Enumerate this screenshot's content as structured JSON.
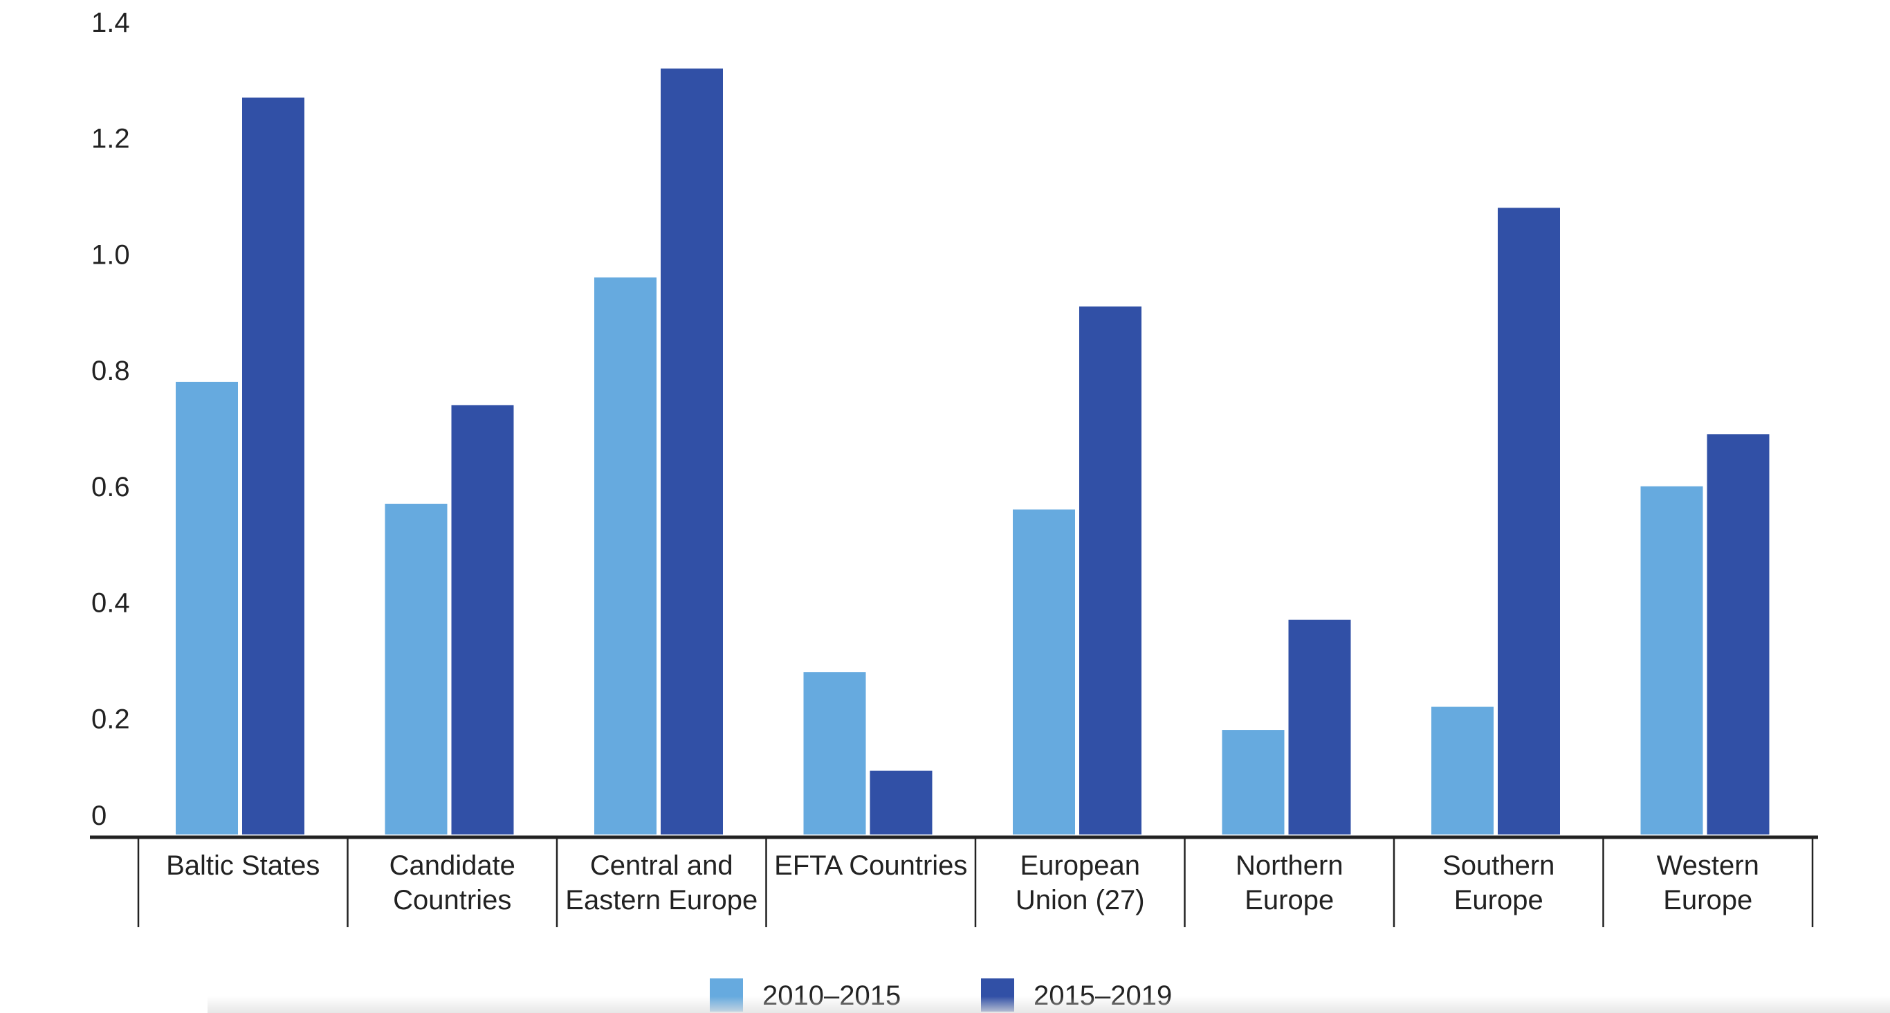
{
  "chart_data": {
    "type": "bar",
    "title": "",
    "xlabel": "",
    "ylabel": "",
    "ylim": [
      0,
      1.4
    ],
    "yticks": [
      0,
      0.2,
      0.4,
      0.6,
      0.8,
      1.0,
      1.2,
      1.4
    ],
    "ytick_labels": [
      "0",
      "0.2",
      "0.4",
      "0.6",
      "0.8",
      "1.0",
      "1.2",
      "1.4"
    ],
    "grid": false,
    "legend_position": "bottom",
    "categories": [
      [
        "Baltic States"
      ],
      [
        "Candidate",
        "Countries"
      ],
      [
        "Central and",
        "Eastern Europe"
      ],
      [
        "EFTA Countries"
      ],
      [
        "European",
        "Union (27)"
      ],
      [
        "Northern",
        "Europe"
      ],
      [
        "Southern",
        "Europe"
      ],
      [
        "Western",
        "Europe"
      ]
    ],
    "series": [
      {
        "name": "2010–2015",
        "color": "#66aadf",
        "values": [
          0.78,
          0.57,
          0.96,
          0.28,
          0.56,
          0.18,
          0.22,
          0.6
        ]
      },
      {
        "name": "2015–2019",
        "color": "#3150a6",
        "values": [
          1.27,
          0.74,
          1.32,
          0.11,
          0.91,
          0.37,
          1.08,
          0.69
        ]
      }
    ]
  }
}
